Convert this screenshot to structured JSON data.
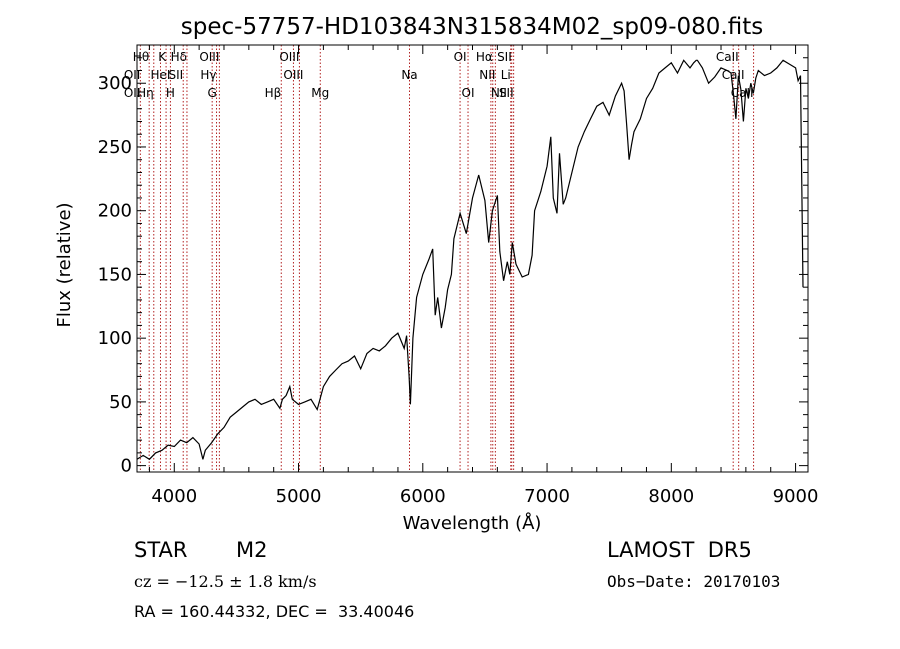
{
  "chart_data": {
    "type": "line",
    "title": "spec-57757-HD103843N315834M02_sp09-080.fits",
    "xlabel": "Wavelength (Å)",
    "ylabel": "Flux (relative)",
    "xlim": [
      3700,
      9100
    ],
    "ylim": [
      -5,
      330
    ],
    "grid": false,
    "x_ticks": [
      4000,
      5000,
      6000,
      7000,
      8000,
      9000
    ],
    "y_ticks": [
      0,
      50,
      100,
      150,
      200,
      250,
      300
    ],
    "series": [
      {
        "x": [
          3700,
          3750,
          3800,
          3850,
          3900,
          3950,
          4000,
          4050,
          4100,
          4150,
          4200,
          4230,
          4250,
          4300,
          4350,
          4400,
          4450,
          4500,
          4550,
          4600,
          4650,
          4700,
          4750,
          4800,
          4850,
          4870,
          4900,
          4930,
          4950,
          5000,
          5050,
          5100,
          5150,
          5200,
          5250,
          5300,
          5350,
          5400,
          5450,
          5500,
          5550,
          5600,
          5650,
          5700,
          5750,
          5800,
          5850,
          5870,
          5890,
          5900,
          5920,
          5950,
          6000,
          6050,
          6080,
          6100,
          6120,
          6150,
          6180,
          6200,
          6230,
          6250,
          6300,
          6350,
          6400,
          6450,
          6500,
          6530,
          6560,
          6600,
          6620,
          6650,
          6680,
          6700,
          6720,
          6750,
          6800,
          6850,
          6880,
          6900,
          6950,
          7000,
          7030,
          7050,
          7080,
          7100,
          7130,
          7150,
          7200,
          7250,
          7300,
          7350,
          7400,
          7450,
          7500,
          7550,
          7600,
          7620,
          7640,
          7660,
          7680,
          7700,
          7750,
          7800,
          7850,
          7900,
          7950,
          8000,
          8050,
          8100,
          8150,
          8180,
          8200,
          8210,
          8250,
          8300,
          8350,
          8400,
          8450,
          8480,
          8500,
          8520,
          8540,
          8560,
          8580,
          8600,
          8620,
          8640,
          8660,
          8680,
          8700,
          8750,
          8800,
          8850,
          8900,
          8950,
          9000,
          9020,
          9040,
          9060
        ],
        "y": [
          5,
          8,
          5,
          10,
          12,
          16,
          15,
          20,
          18,
          22,
          17,
          5,
          12,
          18,
          25,
          30,
          38,
          42,
          46,
          50,
          52,
          48,
          50,
          52,
          45,
          52,
          55,
          62,
          52,
          48,
          50,
          52,
          44,
          62,
          70,
          75,
          80,
          82,
          86,
          76,
          88,
          92,
          90,
          94,
          100,
          104,
          92,
          102,
          70,
          48,
          100,
          132,
          150,
          162,
          170,
          118,
          132,
          108,
          124,
          138,
          150,
          178,
          198,
          182,
          210,
          228,
          208,
          175,
          200,
          212,
          168,
          145,
          160,
          150,
          175,
          158,
          148,
          150,
          165,
          200,
          215,
          235,
          258,
          210,
          198,
          245,
          205,
          210,
          230,
          250,
          262,
          272,
          282,
          285,
          275,
          290,
          300,
          294,
          268,
          240,
          252,
          262,
          272,
          288,
          296,
          308,
          312,
          316,
          308,
          318,
          312,
          316,
          318,
          318,
          312,
          300,
          305,
          312,
          310,
          308,
          292,
          272,
          306,
          295,
          270,
          296,
          288,
          300,
          292,
          304,
          310,
          306,
          308,
          312,
          318,
          315,
          312,
          302,
          306,
          140
        ]
      }
    ],
    "line_markers": [
      {
        "label": "Hθ",
        "x": 3798,
        "row": 0,
        "ha": "right"
      },
      {
        "label": "OII",
        "x": 3727,
        "row": 1,
        "ha": "right"
      },
      {
        "label": "OII",
        "x": 3727,
        "row": 2,
        "ha": "right"
      },
      {
        "label": "Hη",
        "x": 3835,
        "row": 2,
        "ha": "right"
      },
      {
        "label": "K",
        "x": 3934,
        "row": 0,
        "ha": "right"
      },
      {
        "label": "HeI",
        "x": 3889,
        "row": 1,
        "ha": "center"
      },
      {
        "label": "H",
        "x": 3969,
        "row": 2,
        "ha": "center"
      },
      {
        "label": "Hδ",
        "x": 4102,
        "row": 0,
        "ha": "right"
      },
      {
        "label": "SII",
        "x": 4072,
        "row": 1,
        "ha": "right"
      },
      {
        "label": "OIII",
        "x": 4363,
        "row": 0,
        "ha": "right"
      },
      {
        "label": "Hγ",
        "x": 4340,
        "row": 1,
        "ha": "right"
      },
      {
        "label": "G",
        "x": 4305,
        "row": 2,
        "ha": "center"
      },
      {
        "label": "OIII",
        "x": 5007,
        "row": 0,
        "ha": "right"
      },
      {
        "label": "OIII",
        "x": 4959,
        "row": 1,
        "ha": "center"
      },
      {
        "label": "Hβ",
        "x": 4861,
        "row": 2,
        "ha": "right"
      },
      {
        "label": "Mg",
        "x": 5175,
        "row": 2,
        "ha": "center"
      },
      {
        "label": "Na",
        "x": 5893,
        "row": 1,
        "ha": "center"
      },
      {
        "label": "OI",
        "x": 6300,
        "row": 0,
        "ha": "center"
      },
      {
        "label": "OI",
        "x": 6364,
        "row": 2,
        "ha": "center"
      },
      {
        "label": "Hα",
        "x": 6563,
        "row": 0,
        "ha": "right"
      },
      {
        "label": "SII",
        "x": 6716,
        "row": 0,
        "ha": "right"
      },
      {
        "label": "NII",
        "x": 6584,
        "row": 1,
        "ha": "right"
      },
      {
        "label": "Li",
        "x": 6708,
        "row": 1,
        "ha": "right"
      },
      {
        "label": "NII",
        "x": 6548,
        "row": 2,
        "ha": "left"
      },
      {
        "label": "SII",
        "x": 6731,
        "row": 2,
        "ha": "right"
      },
      {
        "label": "CaII",
        "x": 8542,
        "row": 0,
        "ha": "right"
      },
      {
        "label": "CaII",
        "x": 8498,
        "row": 1,
        "ha": "center"
      },
      {
        "label": "CaII",
        "x": 8662,
        "row": 2,
        "ha": "right"
      }
    ],
    "line_marker_color": "#b22222",
    "series_color": "#000000"
  },
  "info": {
    "object_class": "STAR",
    "subclass": "M2",
    "velocity": "cz = −12.5 ± 1.8 km/s",
    "coordinates": "RA = 160.44332, DEC =  33.40046",
    "survey": "LAMOST  DR5",
    "obs_date": "Obs−Date: 20170103"
  }
}
